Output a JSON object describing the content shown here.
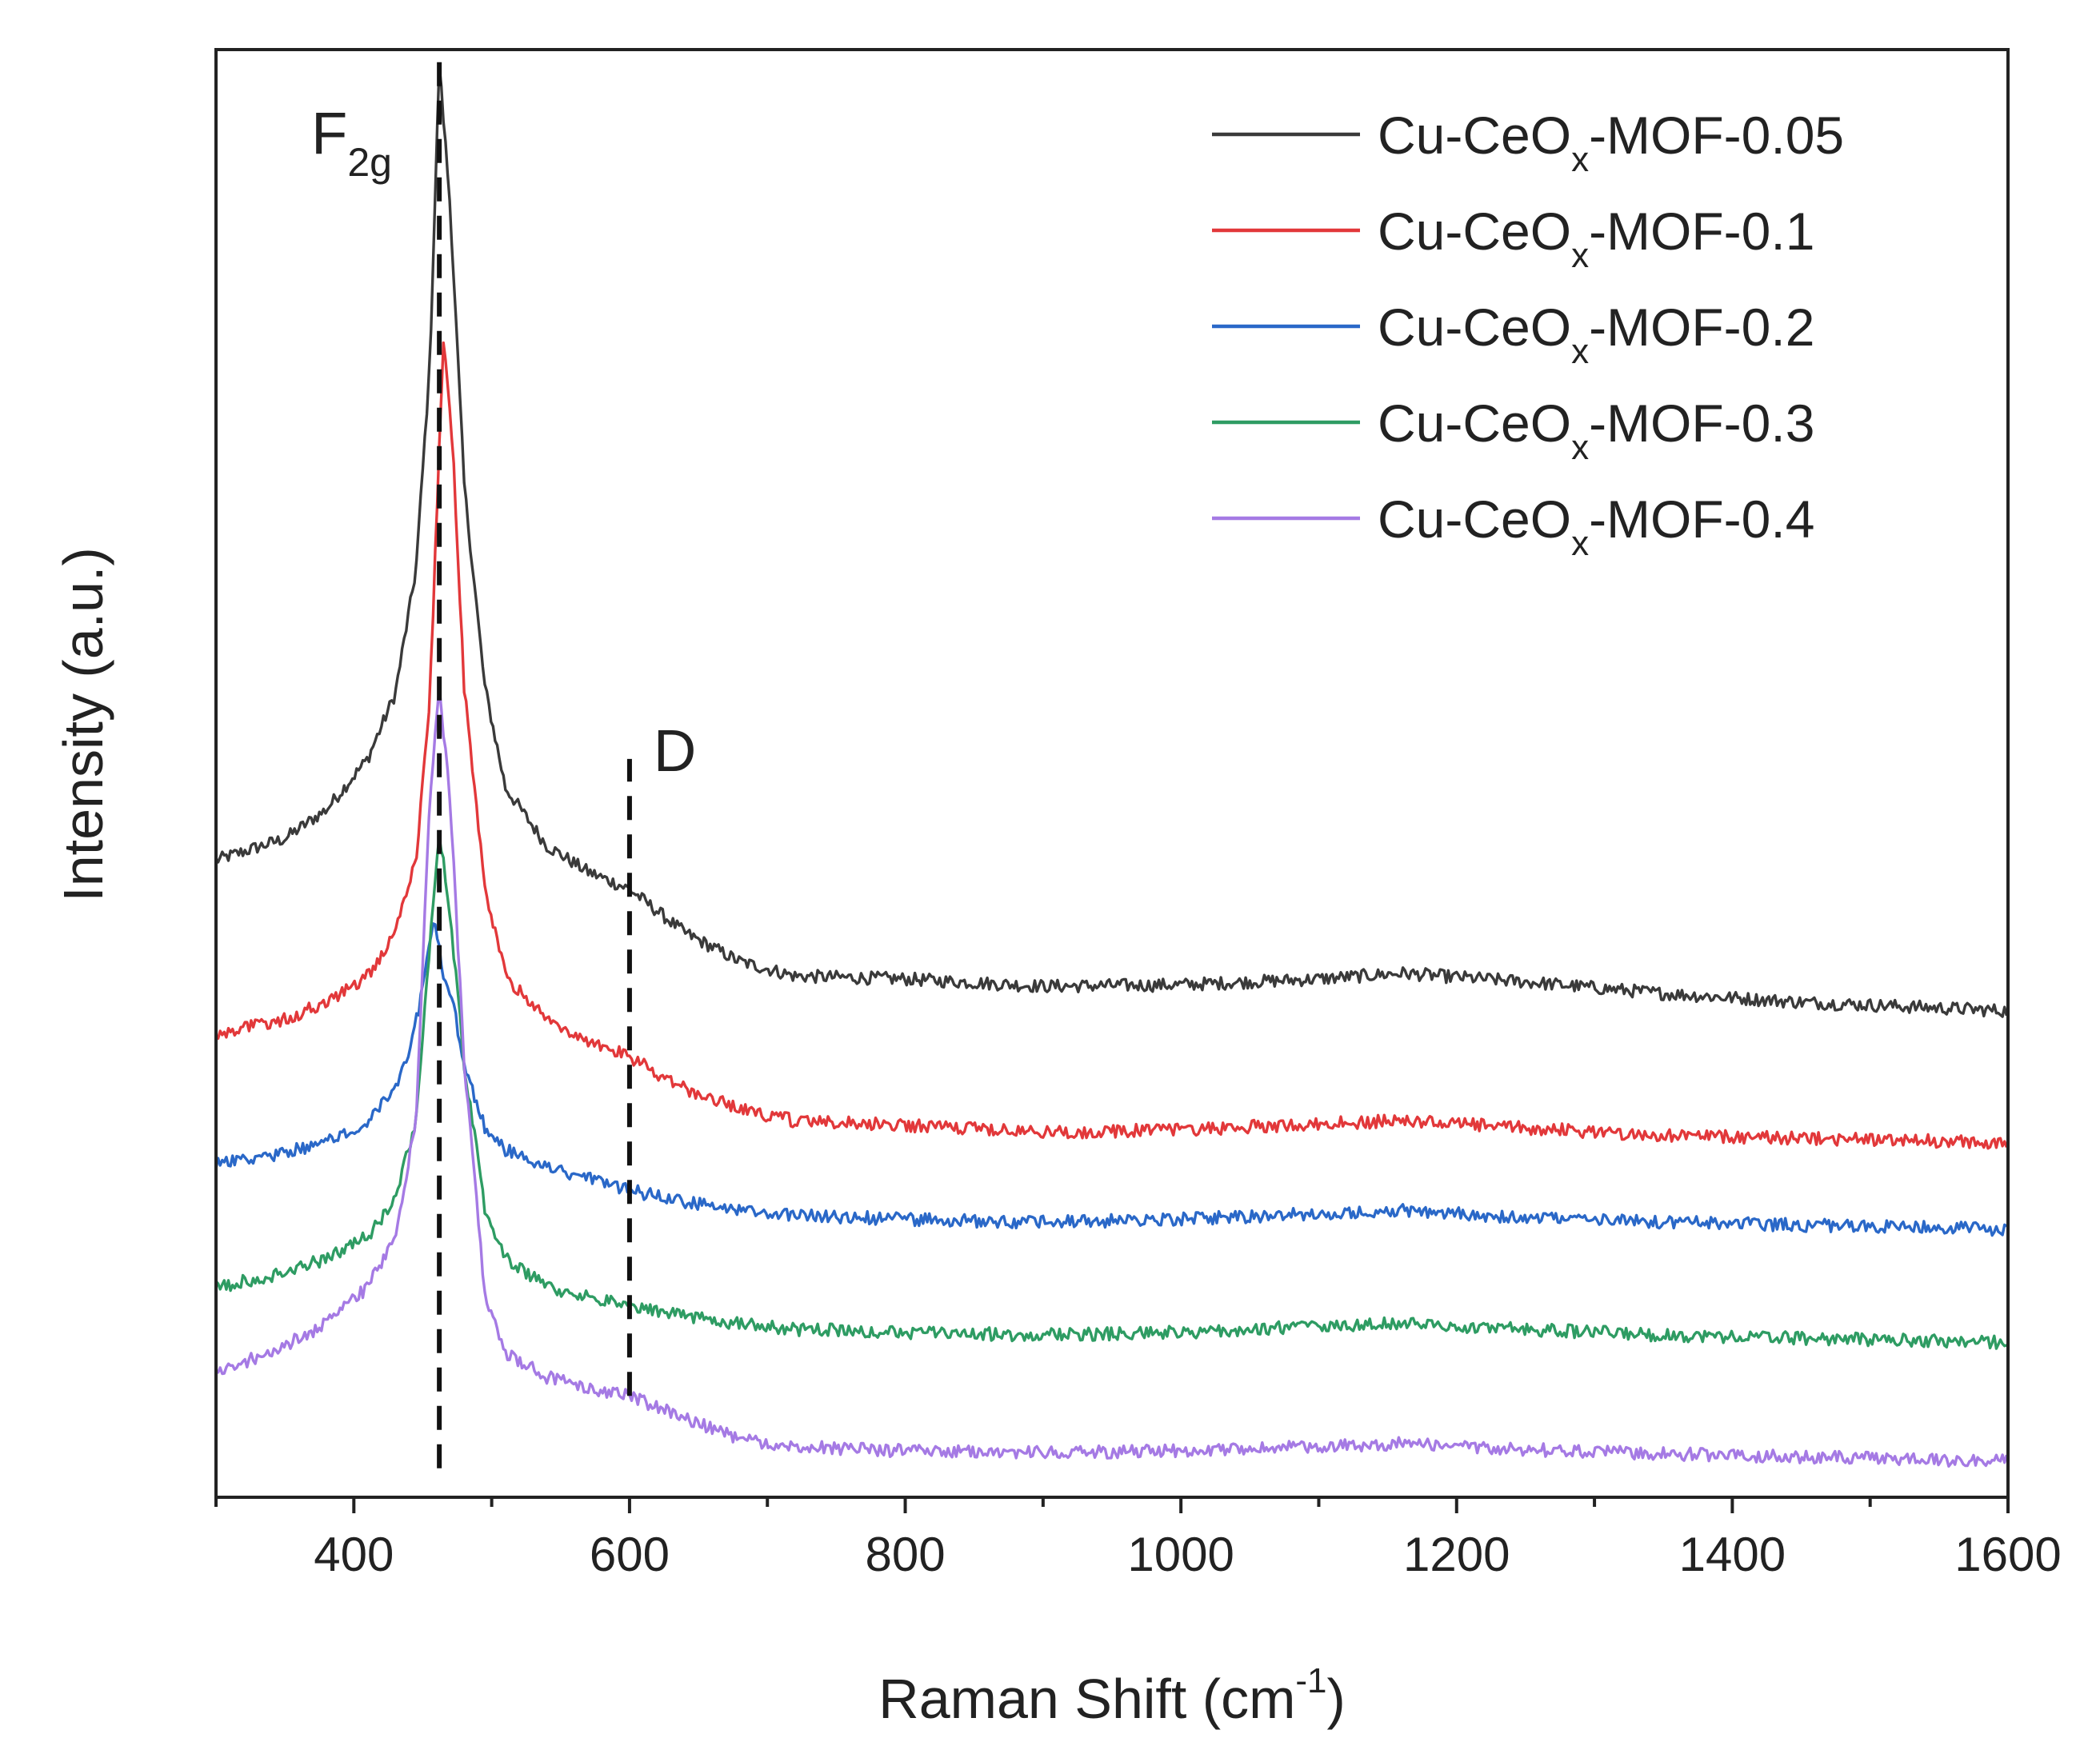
{
  "chart_data": {
    "type": "line",
    "title": "",
    "xlabel": "Raman Shift (cm",
    "xlabel_sup": "-1",
    "xlabel_tail": ")",
    "ylabel": "Intensity (a.u.)",
    "xlim": [
      300,
      1600
    ],
    "ylim": [
      0,
      100
    ],
    "x_ticks": [
      400,
      600,
      800,
      1000,
      1200,
      1400,
      1600
    ],
    "y_ticks_shown": false,
    "legend_position": "top-right",
    "series": [
      {
        "name_prefix": "Cu-CeO",
        "name_sub": "x",
        "name_suffix": "-MOF-0.05",
        "color": "#3a3a3a",
        "x": [
          300,
          350,
          380,
          410,
          430,
          445,
          455,
          462,
          470,
          480,
          495,
          510,
          540,
          570,
          600,
          640,
          680,
          720,
          800,
          900,
          1000,
          1100,
          1160,
          1250,
          1350,
          1450,
          1550,
          1600
        ],
        "y": [
          44.0,
          45.5,
          47.5,
          51.0,
          55.5,
          64.0,
          78.0,
          99.0,
          89.0,
          70.0,
          56.0,
          49.0,
          45.0,
          43.2,
          42.0,
          39.0,
          37.0,
          36.0,
          35.8,
          35.3,
          35.4,
          35.8,
          36.2,
          35.6,
          34.8,
          34.2,
          33.8,
          33.6
        ]
      },
      {
        "name_prefix": "Cu-CeO",
        "name_sub": "x",
        "name_suffix": "-MOF-0.1",
        "color": "#e2383a",
        "x": [
          300,
          350,
          380,
          410,
          430,
          445,
          455,
          465,
          472,
          480,
          495,
          510,
          540,
          570,
          600,
          640,
          680,
          720,
          800,
          900,
          1000,
          1100,
          1160,
          1250,
          1350,
          1450,
          1550,
          1600
        ],
        "y": [
          32.0,
          33.0,
          34.2,
          36.0,
          39.0,
          44.0,
          55.0,
          80.0,
          72.0,
          56.0,
          42.0,
          36.0,
          33.0,
          31.6,
          30.4,
          28.2,
          26.8,
          26.0,
          25.7,
          25.2,
          25.4,
          25.8,
          26.0,
          25.5,
          25.0,
          24.8,
          24.6,
          24.5
        ]
      },
      {
        "name_prefix": "Cu-CeO",
        "name_sub": "x",
        "name_suffix": "-MOF-0.2",
        "color": "#2a68c8",
        "x": [
          300,
          350,
          380,
          410,
          430,
          440,
          450,
          458,
          465,
          472,
          480,
          495,
          510,
          540,
          570,
          600,
          640,
          680,
          720,
          800,
          900,
          1000,
          1100,
          1160,
          1250,
          1350,
          1450,
          1550,
          1600
        ],
        "y": [
          23.0,
          23.8,
          24.6,
          26.0,
          28.5,
          30.5,
          35.0,
          40.0,
          36.0,
          34.0,
          30.0,
          25.5,
          24.0,
          22.8,
          22.0,
          21.2,
          20.4,
          19.8,
          19.5,
          19.2,
          19.0,
          19.2,
          19.6,
          19.8,
          19.3,
          19.0,
          18.8,
          18.6,
          18.5
        ]
      },
      {
        "name_prefix": "Cu-CeO",
        "name_sub": "x",
        "name_suffix": "-MOF-0.3",
        "color": "#2e9c63",
        "x": [
          300,
          350,
          380,
          410,
          430,
          445,
          455,
          462,
          470,
          480,
          495,
          510,
          540,
          570,
          600,
          640,
          680,
          720,
          800,
          900,
          1000,
          1100,
          1160,
          1250,
          1350,
          1450,
          1550,
          1600
        ],
        "y": [
          14.5,
          15.5,
          16.5,
          18.0,
          20.5,
          26.0,
          38.0,
          46.0,
          40.0,
          30.0,
          20.0,
          16.5,
          14.5,
          13.8,
          13.2,
          12.5,
          12.0,
          11.6,
          11.4,
          11.2,
          11.4,
          11.8,
          12.0,
          11.6,
          11.2,
          11.0,
          10.8,
          10.7
        ]
      },
      {
        "name_prefix": "Cu-CeO",
        "name_sub": "x",
        "name_suffix": "-MOF-0.4",
        "color": "#a57ae4",
        "x": [
          300,
          350,
          380,
          410,
          430,
          445,
          455,
          462,
          470,
          480,
          495,
          510,
          540,
          570,
          600,
          640,
          680,
          720,
          800,
          900,
          1000,
          1100,
          1160,
          1250,
          1350,
          1450,
          1550,
          1600
        ],
        "y": [
          8.5,
          10.5,
          12.0,
          14.5,
          18.0,
          26.0,
          48.0,
          56.0,
          48.0,
          30.0,
          14.0,
          10.0,
          8.3,
          7.5,
          7.0,
          5.5,
          4.0,
          3.5,
          3.2,
          3.1,
          3.2,
          3.5,
          3.7,
          3.3,
          3.0,
          2.8,
          2.6,
          2.5
        ]
      }
    ],
    "annotations": [
      {
        "kind": "dashed-line",
        "x": 462,
        "y_from": 2.0,
        "y_to": 100.0,
        "label_main": "F",
        "label_sub": "2g"
      },
      {
        "kind": "dashed-line",
        "x": 600,
        "y_from": 7.0,
        "y_to": 51.0,
        "label_main": "D",
        "label_sub": ""
      }
    ]
  }
}
